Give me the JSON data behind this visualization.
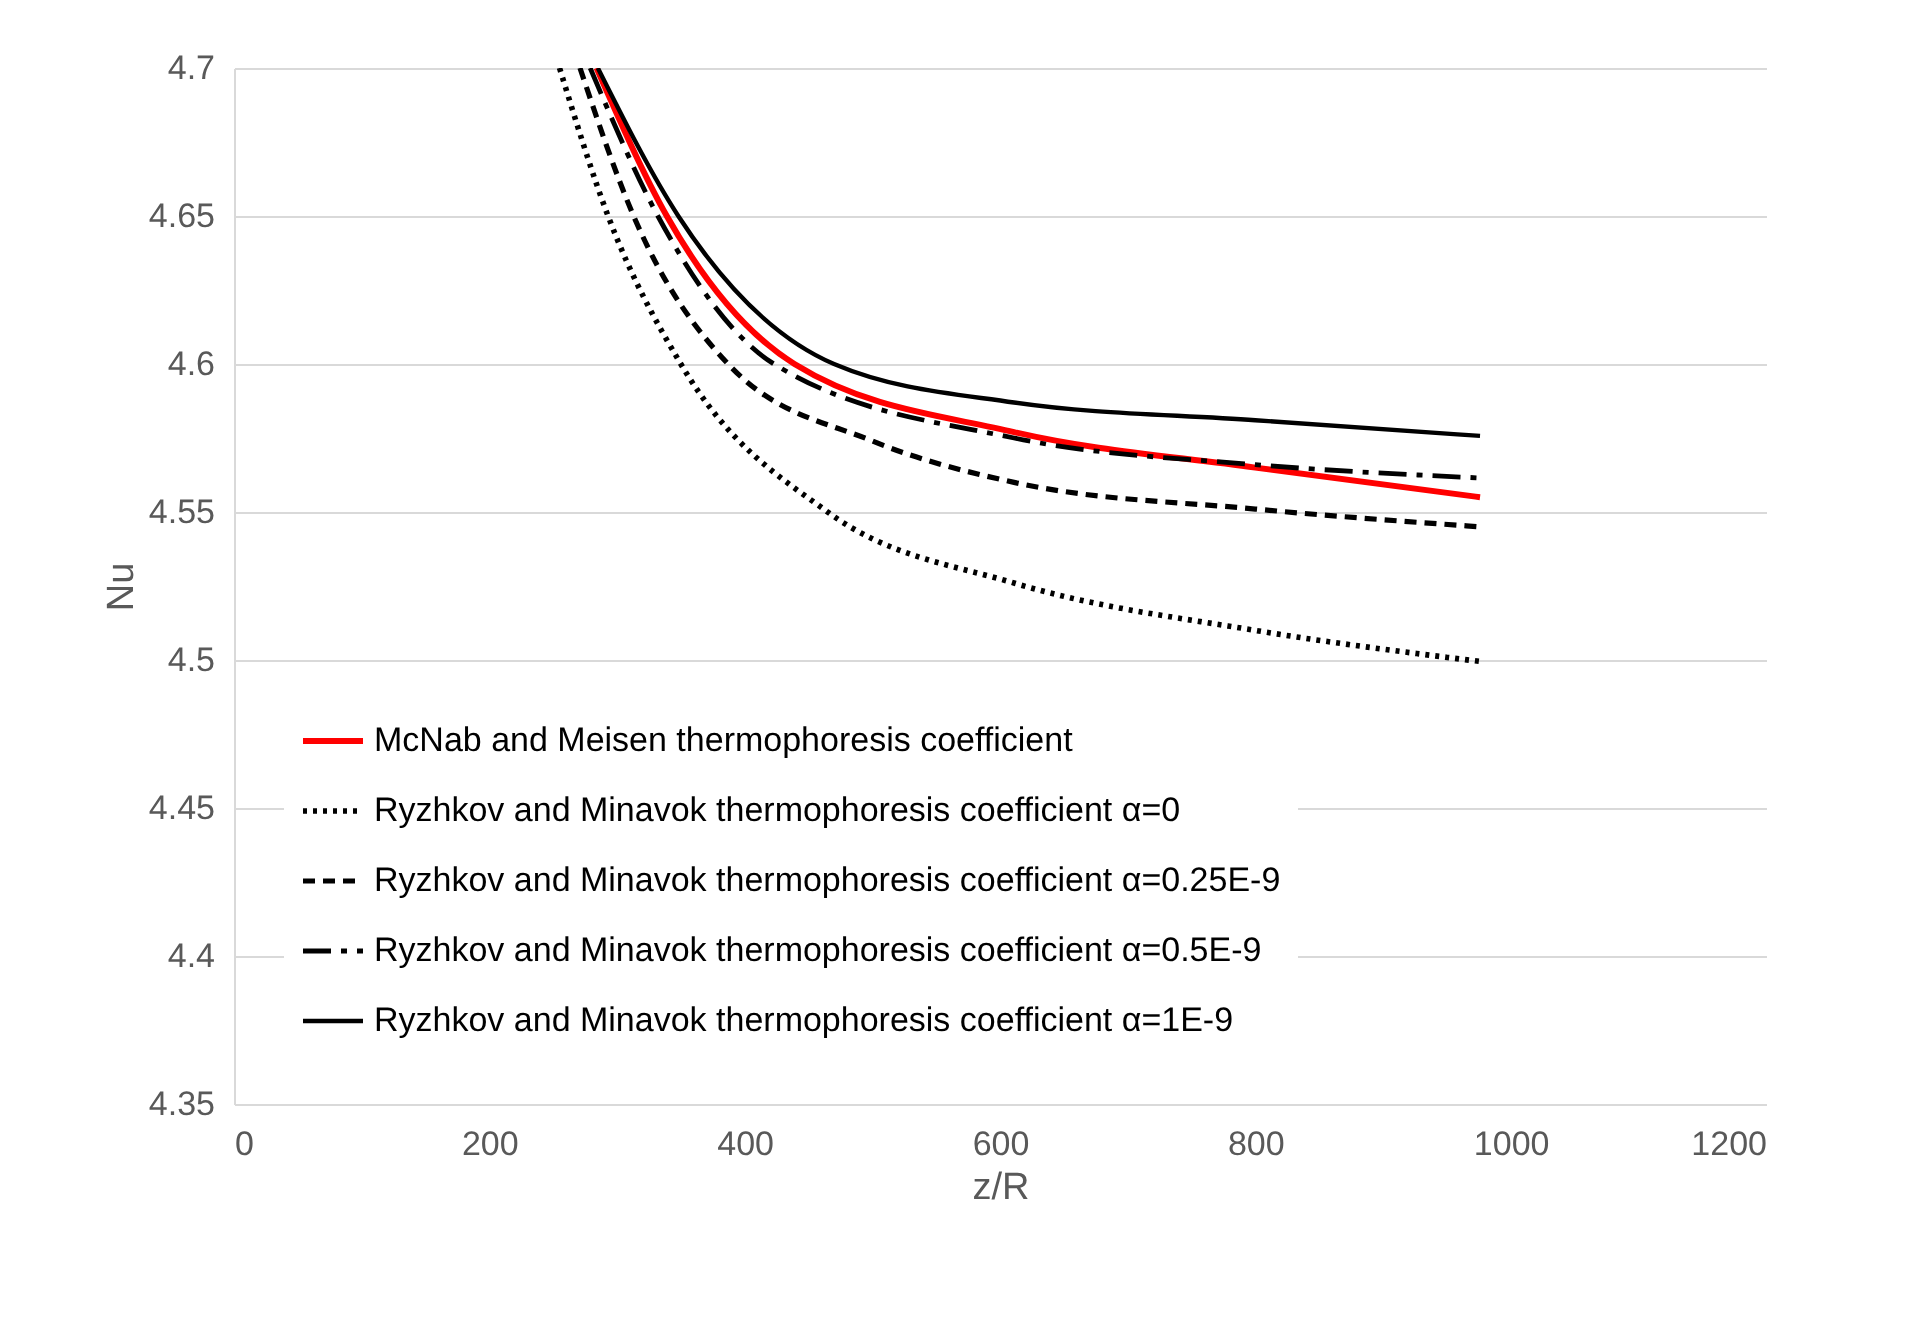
{
  "chart_data": {
    "type": "line",
    "xlabel": "z/R",
    "ylabel": "Nu",
    "xlim": [
      0,
      1200
    ],
    "xticks": [
      0,
      200,
      400,
      600,
      800,
      1000,
      1200
    ],
    "ylim": [
      4.35,
      4.7
    ],
    "yticks": [
      4.35,
      4.4,
      4.45,
      4.5,
      4.55,
      4.6,
      4.65,
      4.7
    ],
    "grid": "y",
    "legend": "bottom left",
    "marker": "none",
    "series": [
      {
        "name": "McNab and Meisen thermophoresis coefficient",
        "color": "#ff0000",
        "line_style": "solid",
        "x": [
          284,
          339,
          439,
          611,
          800,
          976
        ],
        "values": [
          4.7,
          4.65,
          4.6,
          4.577,
          4.565,
          4.555
        ]
      },
      {
        "name": "Ryzhkov and Minavok thermophoresis coefficient α=0",
        "color": "#000000",
        "line_style": "dotted",
        "x": [
          255,
          293,
          350,
          465,
          611,
          800,
          976
        ],
        "values": [
          4.7,
          4.65,
          4.6,
          4.55,
          4.526,
          4.51,
          4.4995
        ]
      },
      {
        "name": "Ryzhkov and Minavok thermophoresis coefficient α=0.25E-9",
        "color": "#000000",
        "line_style": "dashed",
        "x": [
          271,
          313,
          387,
          500,
          611,
          800,
          976
        ],
        "values": [
          4.7,
          4.65,
          4.6,
          4.574,
          4.56,
          4.551,
          4.545
        ]
      },
      {
        "name": "Ryzhkov and Minavok thermophoresis coefficient α=0.5E-9",
        "color": "#000000",
        "line_style": "longdash",
        "x": [
          279,
          332,
          423,
          611,
          800,
          976
        ],
        "values": [
          4.7,
          4.65,
          4.6,
          4.575,
          4.566,
          4.5615
        ]
      },
      {
        "name": "Ryzhkov and Minavok thermophoresis coefficient α=1E-9",
        "color": "#000000",
        "line_style": "solid",
        "x": [
          285,
          348,
          470,
          611,
          800,
          976
        ],
        "values": [
          4.7,
          4.65,
          4.6,
          4.587,
          4.581,
          4.5757
        ]
      }
    ]
  }
}
